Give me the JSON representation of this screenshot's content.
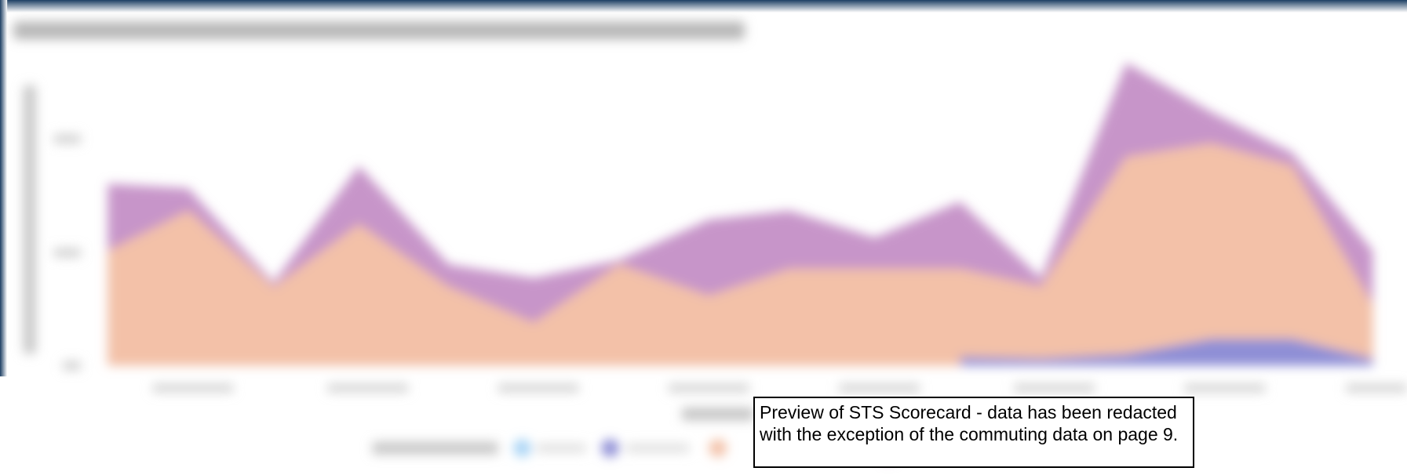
{
  "notice": {
    "lines": [
      "Preview of STS Scorecard - data has been redacted",
      "with the exception of the commuting data on page 9."
    ]
  }
}
